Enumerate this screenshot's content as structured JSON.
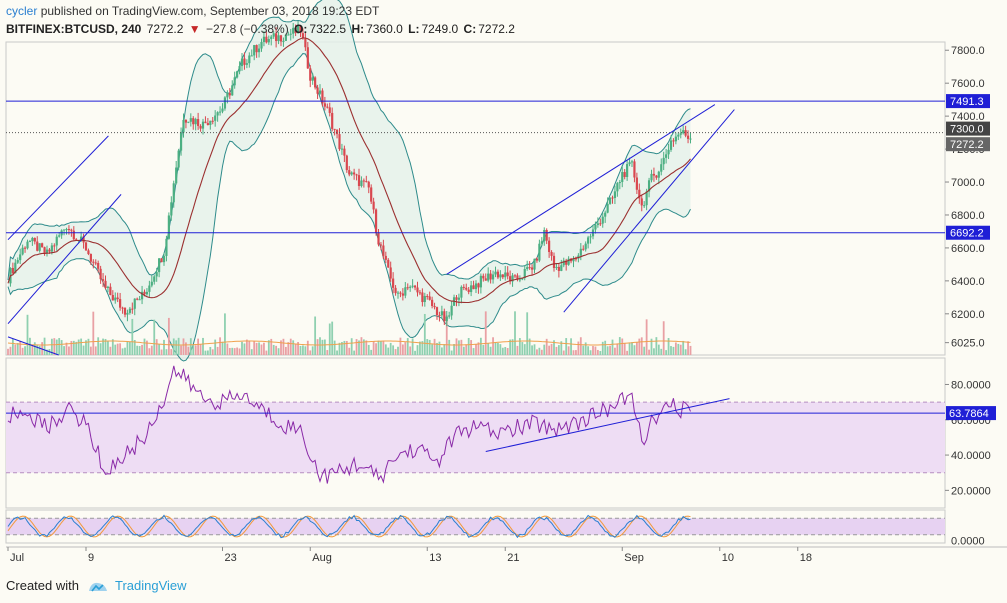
{
  "header": {
    "author": "cycler",
    "published_text": "published on TradingView.com, September 03, 2018 19:23 EDT",
    "symbol": "BITFINEX:BTCUSD, 240",
    "last": "7272.2",
    "change": "−27.8 (−0.38%)",
    "open_label": "O:",
    "open": "7322.5",
    "high_label": "H:",
    "high": "7360.0",
    "low_label": "L:",
    "low": "7249.0",
    "close_label": "C:",
    "close": "7272.2"
  },
  "footer": {
    "created_with": "Created with",
    "brand": "TradingView"
  },
  "colors": {
    "up": "#4caf82",
    "down": "#d9474f",
    "bb": "#2e8b8b",
    "ma": "#9b3030",
    "line": "#1f1fd6",
    "rsi": "#8a2aa8",
    "rsi_fill": "#eeddf4",
    "stoch_k": "#2a7fd0",
    "stoch_d": "#f29a3c"
  },
  "chart_data": {
    "type": "candlestick",
    "x_ticks": [
      "Jul",
      "9",
      "23",
      "Aug",
      "13",
      "21",
      "Sep",
      "10",
      "18"
    ],
    "price_axis": {
      "ticks": [
        7800.0,
        7600.0,
        7400.0,
        7200.0,
        7000.0,
        6800.0,
        6600.0,
        6400.0,
        6200.0,
        6025.0
      ],
      "tick_labels": [
        "7800.0",
        "7600.0",
        "7400.0",
        "7200.0",
        "7000.0",
        "6800.0",
        "6600.0",
        "6400.0",
        "6200.0",
        "6025.0"
      ],
      "range": [
        5950,
        7850
      ]
    },
    "horizontal_levels": [
      {
        "value": 7491.3,
        "label": "7491.3"
      },
      {
        "value": 6692.2,
        "label": "6692.2"
      }
    ],
    "price_labels": [
      {
        "value": 7300.0,
        "label": "7300.0"
      },
      {
        "value": 7272.2,
        "label": "7272.2"
      }
    ],
    "price_series": [
      {
        "day": 0,
        "close": 6420
      },
      {
        "day": 2,
        "close": 6650
      },
      {
        "day": 4,
        "close": 6560
      },
      {
        "day": 6,
        "close": 6740
      },
      {
        "day": 8,
        "close": 6600
      },
      {
        "day": 10,
        "close": 6350
      },
      {
        "day": 12,
        "close": 6220
      },
      {
        "day": 14,
        "close": 6320
      },
      {
        "day": 16,
        "close": 6580
      },
      {
        "day": 17,
        "close": 7000
      },
      {
        "day": 18,
        "close": 7400
      },
      {
        "day": 20,
        "close": 7350
      },
      {
        "day": 22,
        "close": 7450
      },
      {
        "day": 24,
        "close": 7720
      },
      {
        "day": 26,
        "close": 7850
      },
      {
        "day": 30,
        "close": 7920
      },
      {
        "day": 31,
        "close": 7650
      },
      {
        "day": 33,
        "close": 7400
      },
      {
        "day": 35,
        "close": 7050
      },
      {
        "day": 37,
        "close": 6960
      },
      {
        "day": 38,
        "close": 6650
      },
      {
        "day": 39,
        "close": 6450
      },
      {
        "day": 40,
        "close": 6300
      },
      {
        "day": 41,
        "close": 6380
      },
      {
        "day": 43,
        "close": 6280
      },
      {
        "day": 45,
        "close": 6150
      },
      {
        "day": 46,
        "close": 6320
      },
      {
        "day": 48,
        "close": 6380
      },
      {
        "day": 50,
        "close": 6450
      },
      {
        "day": 52,
        "close": 6400
      },
      {
        "day": 54,
        "close": 6500
      },
      {
        "day": 55,
        "close": 6700
      },
      {
        "day": 56,
        "close": 6480
      },
      {
        "day": 58,
        "close": 6520
      },
      {
        "day": 60,
        "close": 6700
      },
      {
        "day": 62,
        "close": 6900
      },
      {
        "day": 63,
        "close": 7050
      },
      {
        "day": 64,
        "close": 7100
      },
      {
        "day": 65,
        "close": 6850
      },
      {
        "day": 66,
        "close": 7020
      },
      {
        "day": 67,
        "close": 7100
      },
      {
        "day": 68,
        "close": 7250
      },
      {
        "day": 69,
        "close": 7300
      },
      {
        "day": 70,
        "close": 7272.2
      }
    ],
    "rsi": {
      "ticks": [
        80.0,
        60.0,
        40.0,
        20.0
      ],
      "tick_labels": [
        "80.0000",
        "60.0000",
        "40.0000",
        "20.0000"
      ],
      "range": [
        10,
        95
      ],
      "band": [
        30,
        70
      ],
      "current": 63.7864,
      "current_label": "63.7864",
      "series": [
        {
          "day": 0,
          "value": 62
        },
        {
          "day": 2,
          "value": 64
        },
        {
          "day": 4,
          "value": 55
        },
        {
          "day": 6,
          "value": 66
        },
        {
          "day": 8,
          "value": 58
        },
        {
          "day": 10,
          "value": 30
        },
        {
          "day": 12,
          "value": 40
        },
        {
          "day": 14,
          "value": 50
        },
        {
          "day": 16,
          "value": 72
        },
        {
          "day": 17,
          "value": 88
        },
        {
          "day": 18,
          "value": 84
        },
        {
          "day": 20,
          "value": 72
        },
        {
          "day": 22,
          "value": 70
        },
        {
          "day": 24,
          "value": 74
        },
        {
          "day": 26,
          "value": 66
        },
        {
          "day": 28,
          "value": 58
        },
        {
          "day": 30,
          "value": 54
        },
        {
          "day": 32,
          "value": 28
        },
        {
          "day": 34,
          "value": 30
        },
        {
          "day": 36,
          "value": 36
        },
        {
          "day": 38,
          "value": 26
        },
        {
          "day": 40,
          "value": 40
        },
        {
          "day": 42,
          "value": 44
        },
        {
          "day": 44,
          "value": 36
        },
        {
          "day": 46,
          "value": 52
        },
        {
          "day": 48,
          "value": 56
        },
        {
          "day": 50,
          "value": 52
        },
        {
          "day": 52,
          "value": 55
        },
        {
          "day": 54,
          "value": 58
        },
        {
          "day": 56,
          "value": 55
        },
        {
          "day": 58,
          "value": 58
        },
        {
          "day": 60,
          "value": 62
        },
        {
          "day": 62,
          "value": 68
        },
        {
          "day": 64,
          "value": 73
        },
        {
          "day": 65,
          "value": 48
        },
        {
          "day": 66,
          "value": 58
        },
        {
          "day": 67,
          "value": 63
        },
        {
          "day": 68,
          "value": 68
        },
        {
          "day": 69,
          "value": 66
        },
        {
          "day": 70,
          "value": 63.8
        }
      ]
    },
    "stoch": {
      "ticks": [
        0.0
      ],
      "tick_labels": [
        "0.0000"
      ],
      "range": [
        -10,
        110
      ],
      "band": [
        20,
        80
      ]
    }
  }
}
